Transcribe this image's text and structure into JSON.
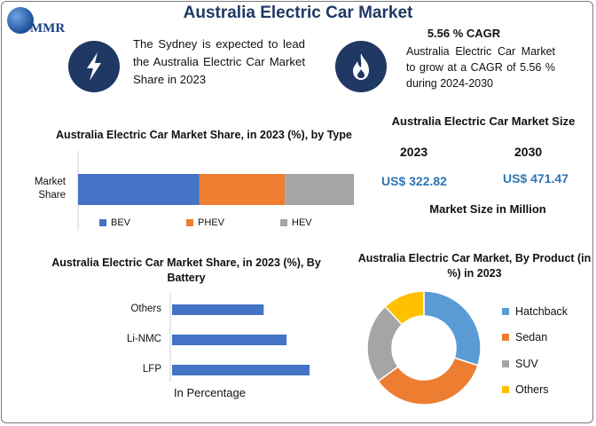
{
  "header": {
    "logo_text": "MMR",
    "title": "Australia Electric Car Market"
  },
  "highlights": {
    "lead_text": "The Sydney is expected to lead the Australia Electric Car Market Share in 2023",
    "lead_icon": "lightning-icon",
    "cagr_title": "5.56 % CAGR",
    "cagr_text": "Australia Electric Car Market to grow at a CAGR of 5.56 % during 2024-2030",
    "cagr_icon": "flame-icon",
    "icon_color": "#1f3864"
  },
  "market_size": {
    "title": "Australia Electric Car Market Size",
    "year_1": "2023",
    "year_2": "2030",
    "value_1": "US$ 322.82",
    "value_2": "US$ 471.47",
    "unit_note": "Market Size in Million"
  },
  "chart_data": [
    {
      "type": "bar",
      "orientation": "horizontal-stacked",
      "title": "Australia Electric Car Market Share, in 2023 (%), by Type",
      "categories": [
        "Market Share"
      ],
      "series": [
        {
          "name": "BEV",
          "values": [
            44
          ],
          "color": "#4472c4"
        },
        {
          "name": "PHEV",
          "values": [
            31
          ],
          "color": "#ed7d31"
        },
        {
          "name": "HEV",
          "values": [
            25
          ],
          "color": "#a5a5a5"
        }
      ],
      "legend": "bottom",
      "grid": false
    },
    {
      "type": "bar",
      "orientation": "horizontal",
      "title": "Australia Electric Car Market Share, in 2023 (%), By Battery",
      "categories": [
        "Others",
        "Li-NMC",
        "LFP"
      ],
      "values": [
        24,
        30,
        36
      ],
      "color": "#4472c4",
      "xlabel": "In Percentage",
      "grid": false
    },
    {
      "type": "pie",
      "style": "donut",
      "title": "Australia Electric Car Market, By Product (in %) in 2023",
      "labels": [
        "Hatchback",
        "Sedan",
        "SUV",
        "Others"
      ],
      "values": [
        30,
        35,
        23,
        12
      ],
      "colors": [
        "#5b9bd5",
        "#ed7d31",
        "#a5a5a5",
        "#ffc000"
      ],
      "legend": "right"
    }
  ]
}
